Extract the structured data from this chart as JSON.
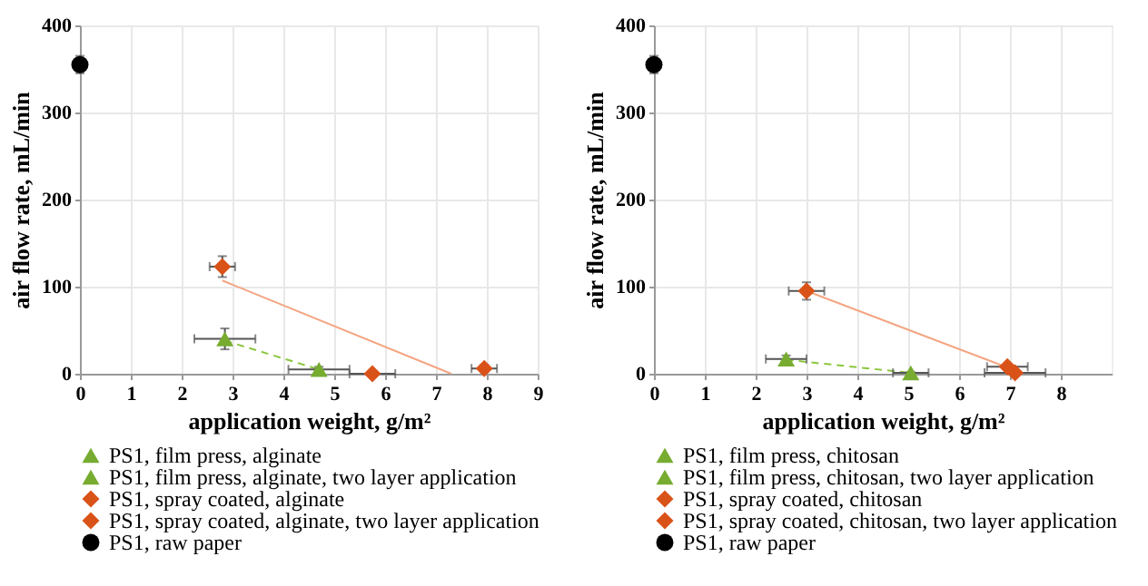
{
  "chart_data": [
    {
      "type": "scatter",
      "xlabel": "application weight, g/m²",
      "ylabel": "air flow rate, mL/min",
      "xlim": [
        0,
        9
      ],
      "ylim": [
        0,
        400
      ],
      "xticks": [
        0,
        1,
        2,
        3,
        4,
        5,
        6,
        7,
        8,
        9
      ],
      "yticks": [
        0,
        100,
        200,
        300,
        400
      ],
      "grid": true,
      "legend": "bottom",
      "series": [
        {
          "type": "line",
          "x": [
            2.85,
            4.7
          ],
          "values": [
            38,
            5
          ],
          "color": "#8cc63f",
          "line_style": "dashed",
          "marker": "none"
        },
        {
          "type": "line",
          "x": [
            2.8,
            7.3
          ],
          "values": [
            107,
            0
          ],
          "color": "#f4a582",
          "line_style": "solid",
          "marker": "none"
        },
        {
          "name": "PS1, film press, alginate",
          "color": "#77ac30",
          "marker": "triangle",
          "x": [
            2.85
          ],
          "values": [
            40
          ],
          "errors": [
            12
          ],
          "xerrors": [
            0.6
          ]
        },
        {
          "name": "PS1, film press, alginate, two layer application",
          "color": "#77ac30",
          "marker": "triangle",
          "x": [
            4.7
          ],
          "values": [
            5
          ],
          "errors": [
            3
          ],
          "xerrors": [
            0.6
          ]
        },
        {
          "name": "PS1, spray coated, alginate",
          "color": "#d95319",
          "marker": "diamond",
          "x": [
            2.8,
            5.75
          ],
          "values": [
            123,
            0
          ],
          "errors": [
            12,
            2
          ],
          "xerrors": [
            0.25,
            0.45
          ]
        },
        {
          "name": "PS1, spray coated, alginate, two layer application",
          "color": "#d95319",
          "marker": "diamond",
          "x": [
            7.95
          ],
          "values": [
            6
          ],
          "errors": [
            4
          ],
          "xerrors": [
            0.25
          ]
        },
        {
          "name": "PS1, raw paper",
          "color": "#000000",
          "marker": "circle",
          "x": [
            0
          ],
          "values": [
            355
          ],
          "errors": [
            10
          ],
          "xerrors": [
            null
          ]
        }
      ]
    },
    {
      "type": "scatter",
      "xlabel": "application weight, g/m²",
      "ylabel": "air flow rate, mL/min",
      "xlim": [
        0,
        9
      ],
      "ylim": [
        0,
        400
      ],
      "xticks": [
        0,
        1,
        2,
        3,
        4,
        5,
        6,
        7,
        8
      ],
      "yticks": [
        0,
        100,
        200,
        300,
        400
      ],
      "grid": true,
      "legend": "bottom",
      "series": [
        {
          "type": "line",
          "x": [
            2.6,
            5.05
          ],
          "values": [
            16,
            1
          ],
          "color": "#8cc63f",
          "line_style": "dashed",
          "marker": "none"
        },
        {
          "type": "line",
          "x": [
            3,
            7.05
          ],
          "values": [
            95,
            5
          ],
          "color": "#f4a582",
          "line_style": "solid",
          "marker": "none"
        },
        {
          "name": "PS1, film press, chitosan",
          "color": "#77ac30",
          "marker": "triangle",
          "x": [
            2.6
          ],
          "values": [
            17
          ],
          "errors": [
            4
          ],
          "xerrors": [
            0.4
          ]
        },
        {
          "name": "PS1, film press, chitosan, two layer application",
          "color": "#77ac30",
          "marker": "triangle",
          "x": [
            5.05
          ],
          "values": [
            1
          ],
          "errors": [
            1
          ],
          "xerrors": [
            0.35
          ]
        },
        {
          "name": "PS1, spray coated, chitosan",
          "color": "#d95319",
          "marker": "diamond",
          "x": [
            3,
            6.95
          ],
          "values": [
            95,
            8
          ],
          "errors": [
            10,
            3
          ],
          "xerrors": [
            0.35,
            0.4
          ]
        },
        {
          "name": "PS1, spray coated, chitosan, two layer application",
          "color": "#d95319",
          "marker": "diamond",
          "x": [
            7.1
          ],
          "values": [
            1
          ],
          "errors": [
            2
          ],
          "xerrors": [
            0.6
          ]
        },
        {
          "name": "PS1, raw paper",
          "color": "#000000",
          "marker": "circle",
          "x": [
            0
          ],
          "values": [
            355
          ],
          "errors": [
            10
          ],
          "xerrors": [
            null
          ]
        }
      ]
    }
  ]
}
